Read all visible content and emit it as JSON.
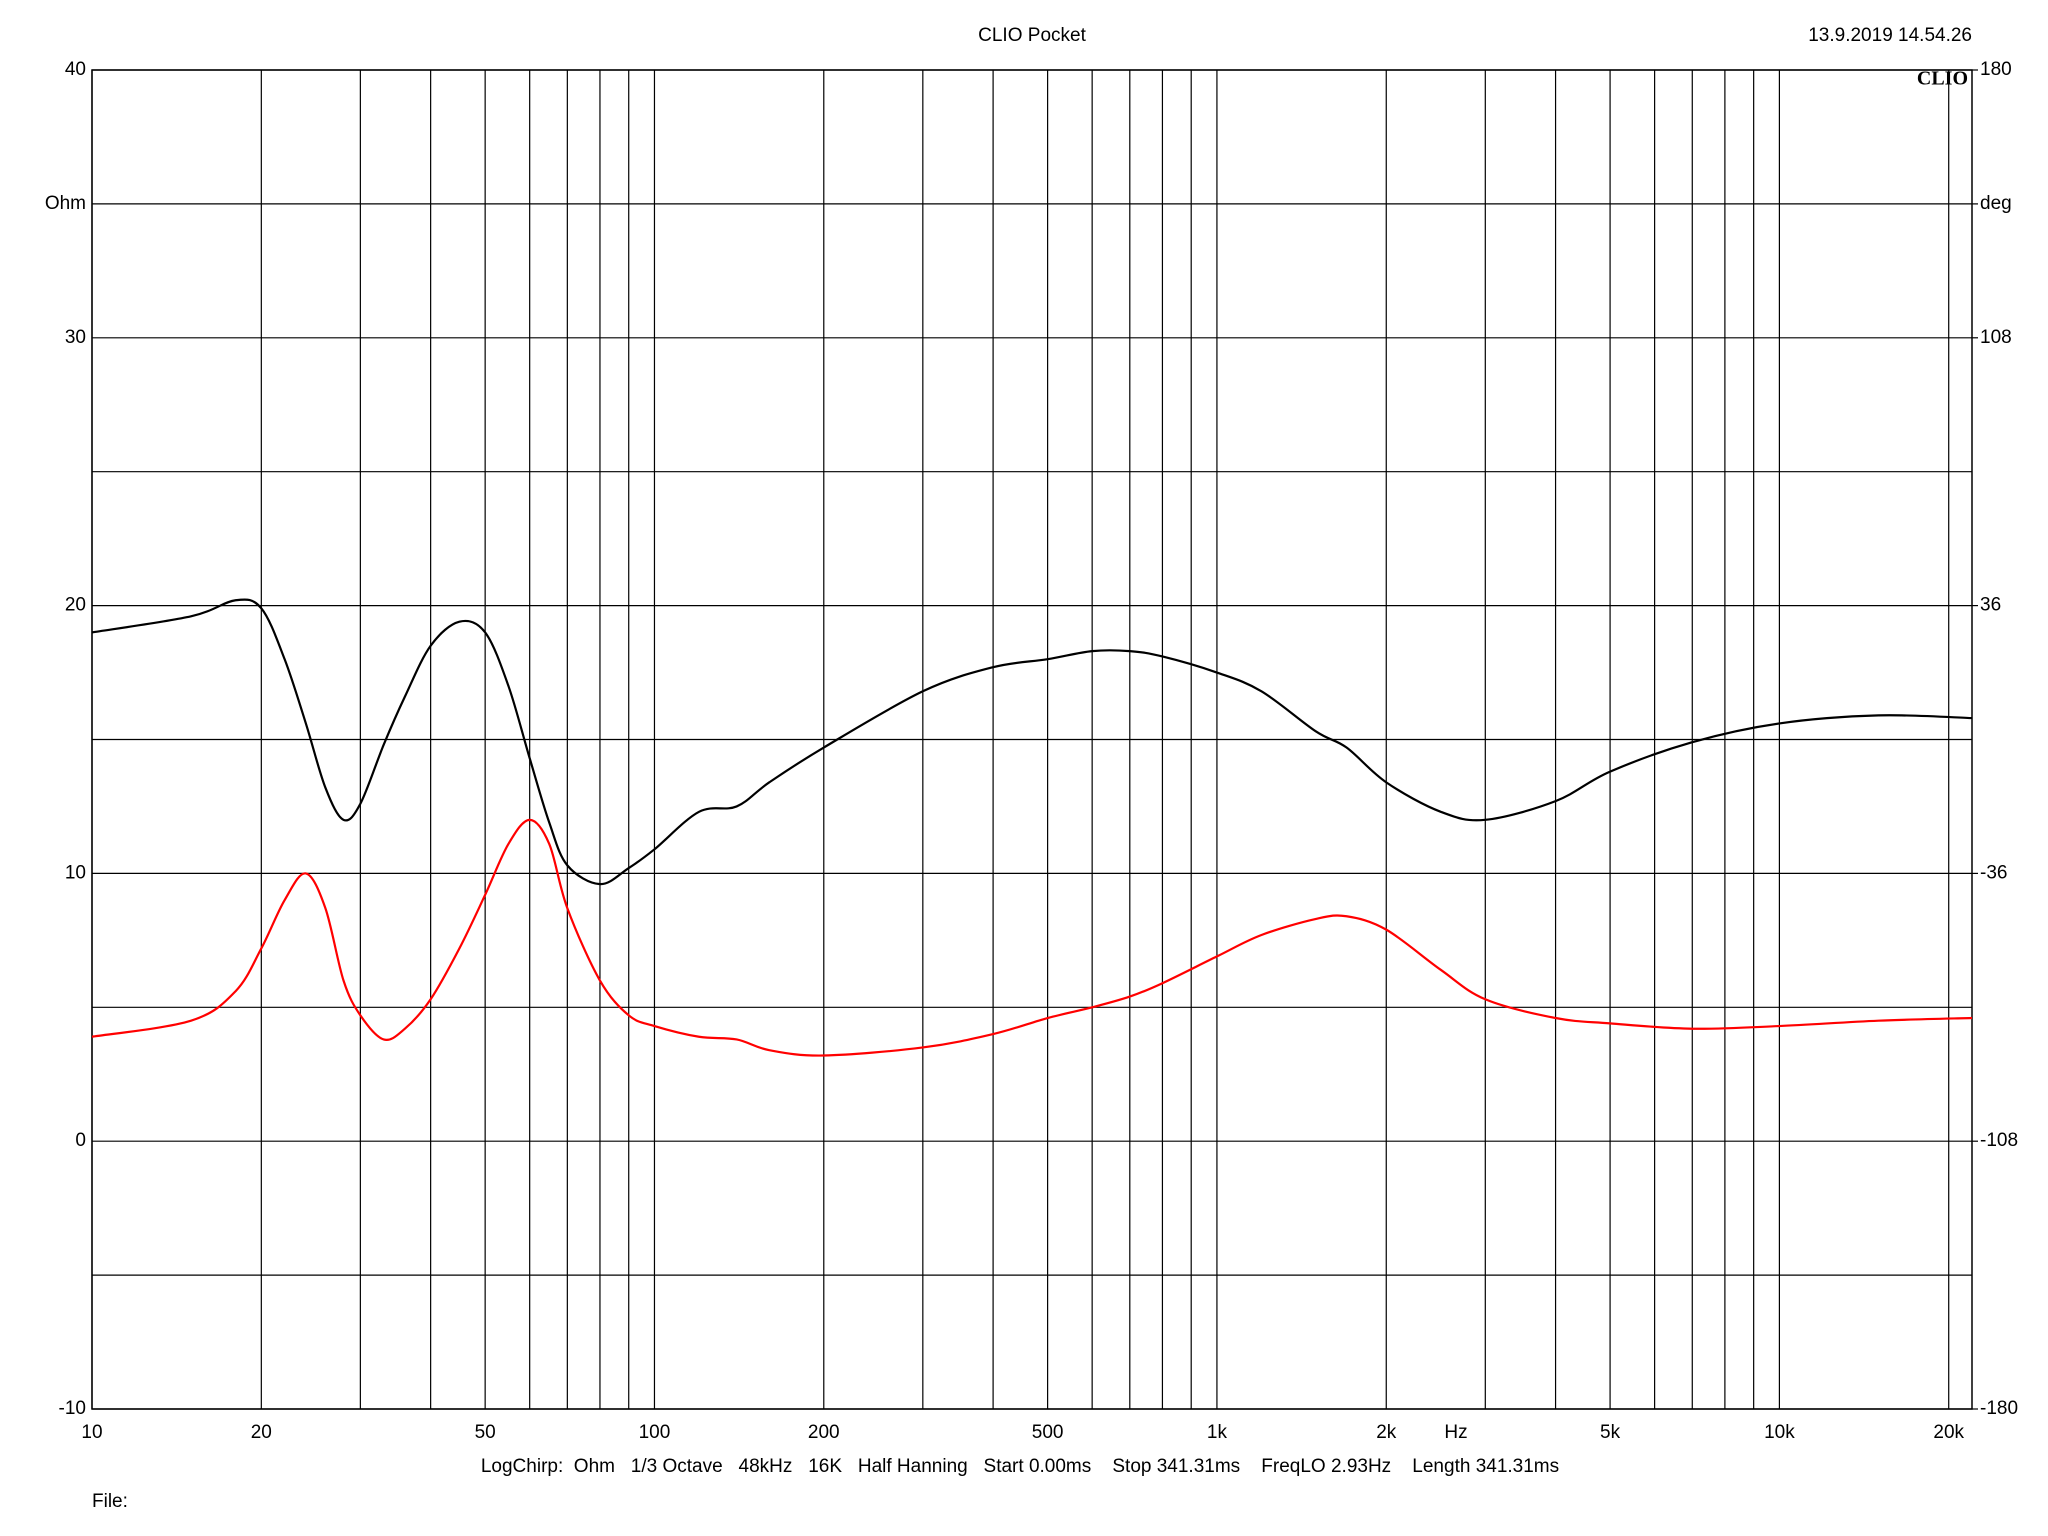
{
  "chart_data": {
    "type": "line",
    "title": "CLIO Pocket",
    "timestamp": "13.9.2019 14.54.26",
    "logo": "CLIO",
    "x_label": "Hz",
    "footer": "LogChirp:  Ohm   1/3 Octave   48kHz   16K   Half Hanning   Start 0.00ms    Stop 341.31ms    FreqLO 2.93Hz    Length 341.31ms",
    "file_label": "File:",
    "x_scale": "log",
    "grid": true,
    "x": [
      10,
      15,
      18,
      20,
      22,
      24,
      26,
      28,
      30,
      33,
      36,
      40,
      45,
      50,
      55,
      60,
      65,
      70,
      80,
      90,
      100,
      120,
      140,
      160,
      200,
      300,
      400,
      500,
      600,
      700,
      800,
      1000,
      1200,
      1500,
      1700,
      2000,
      2500,
      3000,
      4000,
      5000,
      7000,
      10000,
      15000,
      22000
    ],
    "series": [
      {
        "color": "#000000",
        "values": [
          19.0,
          19.6,
          20.2,
          19.9,
          18.0,
          15.6,
          13.2,
          12.0,
          12.6,
          14.8,
          16.6,
          18.5,
          19.4,
          19.0,
          17.0,
          14.3,
          11.9,
          10.3,
          9.6,
          10.2,
          10.9,
          12.3,
          12.5,
          13.4,
          14.7,
          16.8,
          17.7,
          18.0,
          18.3,
          18.3,
          18.1,
          17.5,
          16.8,
          15.3,
          14.7,
          13.4,
          12.3,
          12.0,
          12.7,
          13.8,
          14.9,
          15.6,
          15.9,
          15.8
        ]
      },
      {
        "color": "#ff0000",
        "values": [
          3.9,
          4.5,
          5.6,
          7.2,
          9.0,
          10.0,
          8.7,
          6.0,
          4.7,
          3.8,
          4.2,
          5.3,
          7.2,
          9.2,
          11.1,
          12.0,
          11.1,
          8.7,
          6.0,
          4.7,
          4.3,
          3.9,
          3.8,
          3.4,
          3.2,
          3.5,
          4.0,
          4.6,
          5.0,
          5.4,
          5.9,
          6.9,
          7.7,
          8.3,
          8.4,
          7.9,
          6.4,
          5.3,
          4.6,
          4.4,
          4.2,
          4.3,
          4.5,
          4.6
        ]
      }
    ],
    "xlim": [
      10,
      22000
    ],
    "xticks": [
      10,
      20,
      {
        "value": 30,
        "label": null
      },
      {
        "value": 40,
        "label": null
      },
      50,
      {
        "value": 60,
        "label": null
      },
      {
        "value": 70,
        "label": null
      },
      {
        "value": 80,
        "label": null
      },
      {
        "value": 90,
        "label": null
      },
      100,
      200,
      {
        "value": 300,
        "label": null
      },
      {
        "value": 400,
        "label": null
      },
      500,
      {
        "value": 600,
        "label": null
      },
      {
        "value": 700,
        "label": null
      },
      {
        "value": 800,
        "label": null
      },
      {
        "value": 900,
        "label": null
      },
      {
        "value": 1000,
        "label": "1k"
      },
      {
        "value": 2000,
        "label": "2k"
      },
      {
        "value": 3000,
        "label": null
      },
      {
        "value": 4000,
        "label": null
      },
      {
        "value": 5000,
        "label": "5k"
      },
      {
        "value": 6000,
        "label": null
      },
      {
        "value": 7000,
        "label": null
      },
      {
        "value": 8000,
        "label": null
      },
      {
        "value": 9000,
        "label": null
      },
      {
        "value": 10000,
        "label": "10k"
      },
      {
        "value": 20000,
        "label": "20k"
      }
    ],
    "ylim": [
      -10,
      40
    ],
    "yticks": [
      -10,
      {
        "value": -5,
        "label": null
      },
      0,
      {
        "value": 5,
        "label": null
      },
      10,
      {
        "value": 15,
        "label": null
      },
      20,
      {
        "value": 25,
        "label": null
      },
      30,
      {
        "value": 35,
        "label": "Ohm"
      },
      40
    ],
    "y2lim": [
      -180,
      180
    ],
    "y2ticks": [
      -180,
      -108,
      -36,
      36,
      108,
      {
        "value": 144,
        "label": "deg"
      },
      180
    ]
  }
}
